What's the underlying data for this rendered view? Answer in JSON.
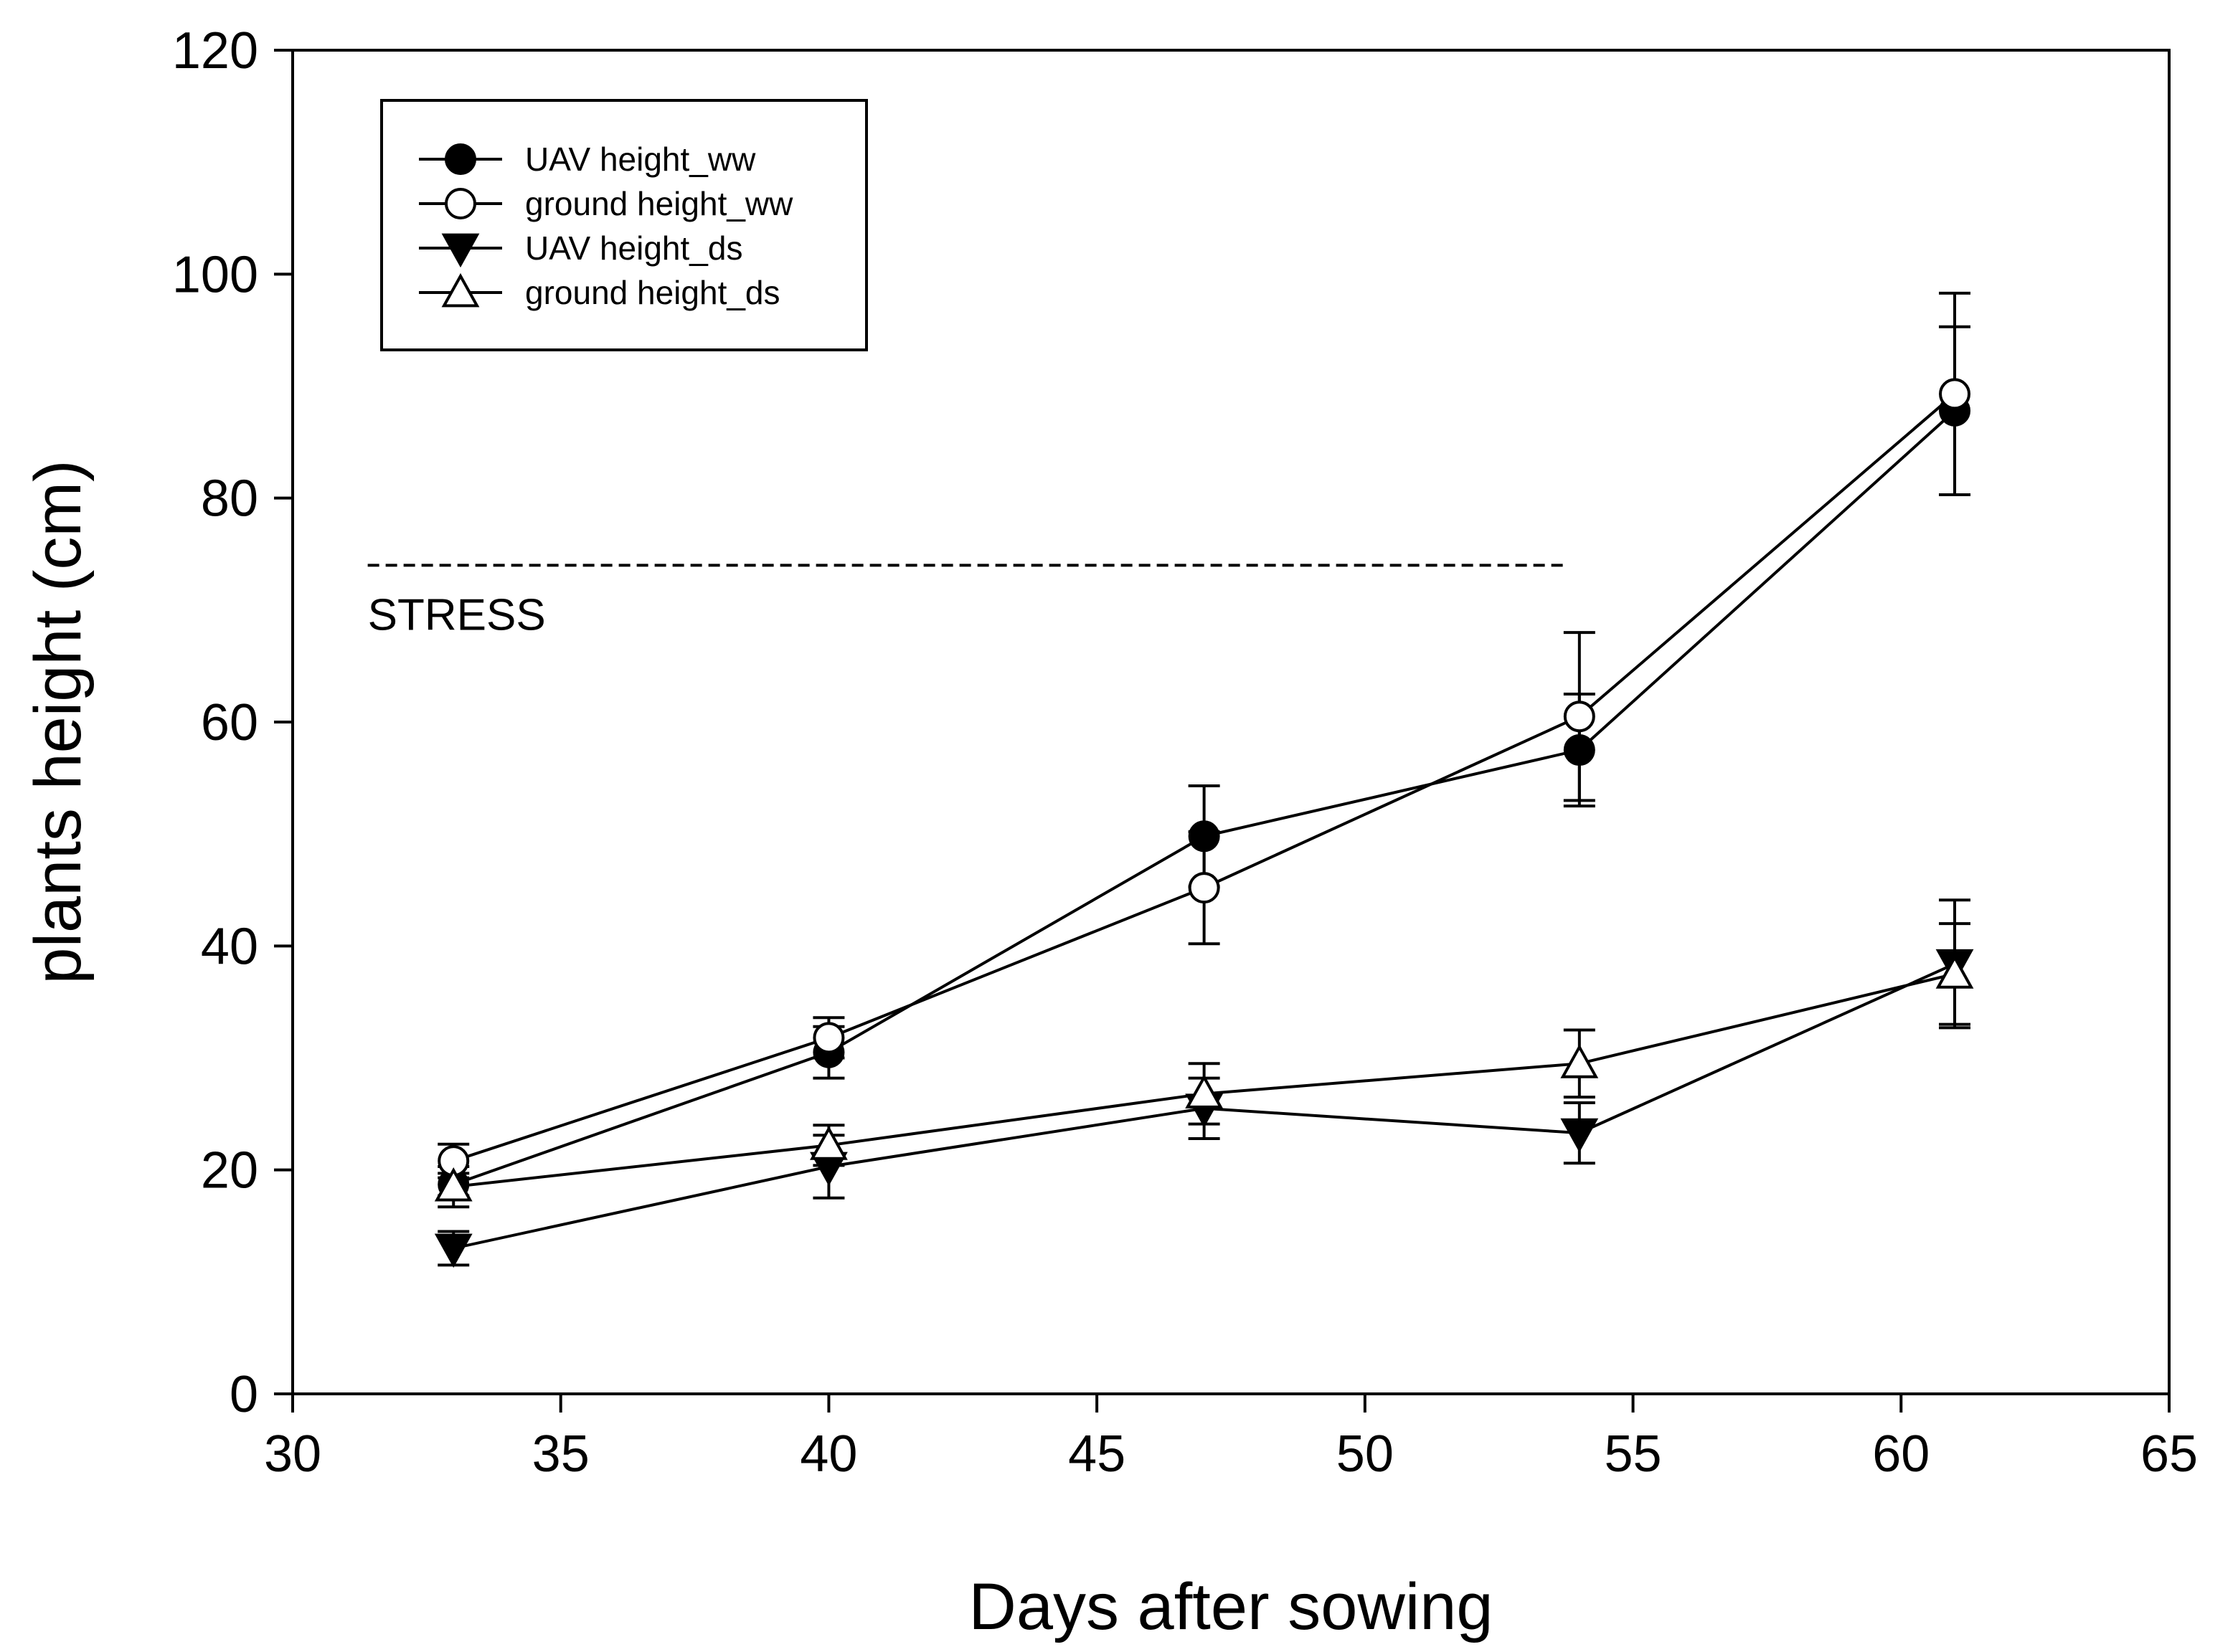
{
  "chart_data": {
    "type": "line",
    "title": "",
    "xlabel": "Days after sowing",
    "ylabel": "plants height (cm)",
    "xlim": [
      30,
      65
    ],
    "ylim": [
      0,
      120
    ],
    "xticks": [
      30,
      35,
      40,
      45,
      50,
      55,
      60,
      65
    ],
    "yticks": [
      0,
      20,
      40,
      60,
      80,
      100,
      120
    ],
    "x": [
      33,
      40,
      47,
      54,
      61
    ],
    "series": [
      {
        "name": "UAV height_ww",
        "marker": "filled-circle",
        "values": [
          18.7,
          30.5,
          49.8,
          57.5,
          87.8
        ],
        "errors": [
          1.0,
          2.3,
          4.5,
          5.0,
          7.5
        ]
      },
      {
        "name": "ground height_ww",
        "marker": "open-circle",
        "values": [
          20.8,
          31.8,
          45.2,
          60.5,
          89.3
        ],
        "errors": [
          1.5,
          1.8,
          5.0,
          7.5,
          9.0
        ]
      },
      {
        "name": "UAV height_ds",
        "marker": "filled-triangle-down",
        "values": [
          13.0,
          20.3,
          25.5,
          23.3,
          38.4
        ],
        "errors": [
          1.5,
          2.8,
          2.7,
          2.7,
          5.7
        ]
      },
      {
        "name": "ground height_ds",
        "marker": "open-triangle-up",
        "values": [
          18.5,
          22.2,
          26.8,
          29.5,
          37.5
        ],
        "errors": [
          1.8,
          1.8,
          2.7,
          3.0,
          4.5
        ]
      }
    ],
    "annotations": [
      {
        "text": "STRESS",
        "x_start": 31.4,
        "x_end": 53.8,
        "y": 74,
        "line_style": "dashed"
      }
    ],
    "legend_position": "top-left",
    "grid": false
  }
}
